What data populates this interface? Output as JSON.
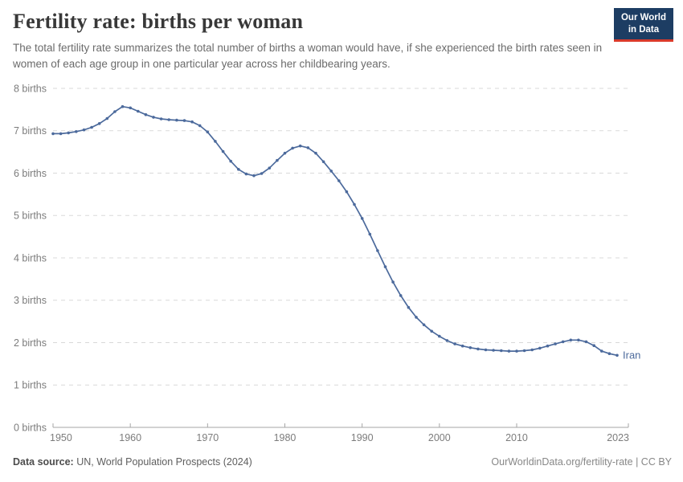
{
  "header": {
    "title": "Fertility rate: births per woman",
    "subtitle": "The total fertility rate summarizes the total number of births a woman would have, if she experienced the birth rates seen in women of each age group in one particular year across her childbearing years.",
    "logo": {
      "line1": "Our World",
      "line2": "in Data",
      "bg_color": "#1d3d63",
      "accent_color": "#d93a2b",
      "text_color": "#ffffff"
    }
  },
  "chart_data": {
    "type": "line",
    "title": "Fertility rate: births per woman",
    "xlabel": "",
    "ylabel": "",
    "xlim": [
      1950,
      2023
    ],
    "ylim": [
      0,
      8
    ],
    "grid": "horizontal-dashed",
    "legend_position": "end-of-line-label",
    "x_ticks": [
      1950,
      1960,
      1970,
      1980,
      1990,
      2000,
      2010,
      2023
    ],
    "y_ticks": [
      {
        "value": 0,
        "label": "0 births"
      },
      {
        "value": 1,
        "label": "1 births"
      },
      {
        "value": 2,
        "label": "2 births"
      },
      {
        "value": 3,
        "label": "3 births"
      },
      {
        "value": 4,
        "label": "4 births"
      },
      {
        "value": 5,
        "label": "5 births"
      },
      {
        "value": 6,
        "label": "6 births"
      },
      {
        "value": 7,
        "label": "7 births"
      },
      {
        "value": 8,
        "label": "8 births"
      }
    ],
    "series": [
      {
        "name": "Iran",
        "end_label": "Iran",
        "color": "#4c6a9c",
        "x": [
          1950,
          1951,
          1952,
          1953,
          1954,
          1955,
          1956,
          1957,
          1958,
          1959,
          1960,
          1961,
          1962,
          1963,
          1964,
          1965,
          1966,
          1967,
          1968,
          1969,
          1970,
          1971,
          1972,
          1973,
          1974,
          1975,
          1976,
          1977,
          1978,
          1979,
          1980,
          1981,
          1982,
          1983,
          1984,
          1985,
          1986,
          1987,
          1988,
          1989,
          1990,
          1991,
          1992,
          1993,
          1994,
          1995,
          1996,
          1997,
          1998,
          1999,
          2000,
          2001,
          2002,
          2003,
          2004,
          2005,
          2006,
          2007,
          2008,
          2009,
          2010,
          2011,
          2012,
          2013,
          2014,
          2015,
          2016,
          2017,
          2018,
          2019,
          2020,
          2021,
          2022,
          2023
        ],
        "values": [
          6.93,
          6.93,
          6.95,
          6.98,
          7.02,
          7.08,
          7.17,
          7.29,
          7.45,
          7.57,
          7.54,
          7.46,
          7.38,
          7.32,
          7.28,
          7.26,
          7.25,
          7.24,
          7.21,
          7.12,
          6.97,
          6.75,
          6.51,
          6.28,
          6.09,
          5.98,
          5.94,
          5.99,
          6.12,
          6.3,
          6.47,
          6.59,
          6.64,
          6.6,
          6.47,
          6.27,
          6.05,
          5.82,
          5.56,
          5.26,
          4.93,
          4.56,
          4.17,
          3.79,
          3.43,
          3.11,
          2.83,
          2.6,
          2.42,
          2.27,
          2.15,
          2.05,
          1.97,
          1.92,
          1.88,
          1.85,
          1.83,
          1.82,
          1.81,
          1.8,
          1.8,
          1.81,
          1.83,
          1.87,
          1.92,
          1.97,
          2.02,
          2.06,
          2.06,
          2.02,
          1.93,
          1.8,
          1.74,
          1.7
        ]
      }
    ],
    "colors": {
      "gridline": "#d9d9d9",
      "axis": "#a6a6a6",
      "tick_label": "#7c7c7c"
    }
  },
  "footer": {
    "source_label": "Data source:",
    "source_text": "UN, World Population Prospects (2024)",
    "credit": "OurWorldinData.org/fertility-rate | CC BY"
  }
}
